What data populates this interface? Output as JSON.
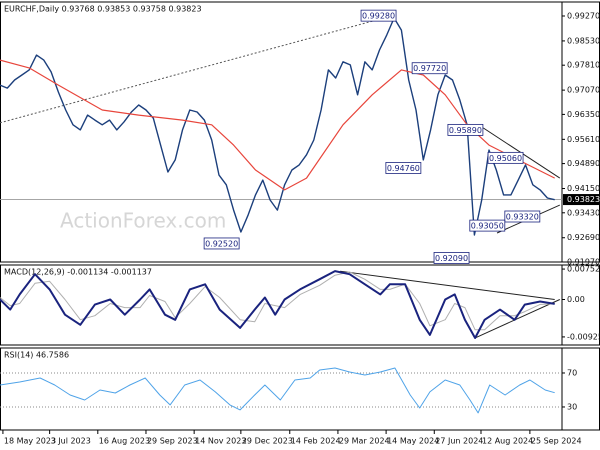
{
  "chart_data": [
    {
      "type": "line",
      "title": "EURCHF,Daily 0.93768 0.93853 0.93758 0.93823",
      "watermark": "ActionForex.com",
      "xlim": [
        0,
        77
      ],
      "ylim": [
        0.9197,
        0.99685
      ],
      "yticks": [
        {
          "value": 0.9927,
          "label": "0.99270"
        },
        {
          "value": 0.9853,
          "label": "0.98530"
        },
        {
          "value": 0.9781,
          "label": "0.97810"
        },
        {
          "value": 0.9707,
          "label": "0.97070"
        },
        {
          "value": 0.9635,
          "label": "0.96350"
        },
        {
          "value": 0.9561,
          "label": "0.95610"
        },
        {
          "value": 0.9489,
          "label": "0.94890"
        },
        {
          "value": 0.9415,
          "label": "0.94150"
        },
        {
          "value": 0.9343,
          "label": "0.93430"
        },
        {
          "value": 0.9269,
          "label": "0.92690"
        },
        {
          "value": 0.9197,
          "label": "0.91970"
        }
      ],
      "x": [
        0,
        1,
        2,
        3,
        4,
        5,
        6,
        7,
        8,
        9,
        10,
        11,
        12,
        13,
        14,
        15,
        16,
        17,
        18,
        19,
        20,
        21,
        22,
        23,
        24,
        25,
        26,
        27,
        28,
        29,
        30,
        31,
        32,
        33,
        34,
        35,
        36,
        37,
        38,
        39,
        40,
        41,
        42,
        43,
        44,
        45,
        46,
        47,
        48,
        49,
        50,
        51,
        52,
        53,
        54,
        55,
        56,
        57,
        58,
        59,
        60,
        61,
        62,
        63,
        64,
        65,
        66,
        67,
        68,
        69,
        70,
        71,
        72,
        73,
        74,
        75,
        76
      ],
      "series": [
        {
          "color": "#1c3f7c",
          "width": 1.4,
          "values": [
            0.9722,
            0.9713,
            0.9737,
            0.9752,
            0.9767,
            0.9811,
            0.9796,
            0.9761,
            0.9701,
            0.9648,
            0.9604,
            0.9589,
            0.9633,
            0.9618,
            0.9604,
            0.9618,
            0.9589,
            0.9613,
            0.9642,
            0.9663,
            0.9648,
            0.9624,
            0.9544,
            0.9464,
            0.95,
            0.9589,
            0.9648,
            0.9642,
            0.9618,
            0.9559,
            0.9455,
            0.9426,
            0.9351,
            0.9286,
            0.9337,
            0.9396,
            0.944,
            0.9381,
            0.9351,
            0.9426,
            0.947,
            0.9485,
            0.9515,
            0.9559,
            0.9648,
            0.9767,
            0.9743,
            0.9791,
            0.9782,
            0.9693,
            0.9791,
            0.9767,
            0.9826,
            0.9871,
            0.9921,
            0.9885,
            0.9737,
            0.9648,
            0.95,
            0.9589,
            0.9693,
            0.9752,
            0.9737,
            0.9678,
            0.9604,
            0.9277,
            0.9381,
            0.9529,
            0.947,
            0.9396,
            0.9396,
            0.944,
            0.9485,
            0.9426,
            0.9411,
            0.9387,
            0.9382
          ]
        },
        {
          "color": "#e8463c",
          "width": 1.2,
          "x": [
            0,
            4,
            8,
            14,
            19,
            25,
            29,
            32,
            35,
            39,
            42,
            47,
            51,
            55,
            58,
            61,
            64,
            67,
            71,
            76
          ],
          "values": [
            0.9796,
            0.9773,
            0.9722,
            0.9648,
            0.9633,
            0.9618,
            0.9604,
            0.9544,
            0.947,
            0.9411,
            0.9446,
            0.9604,
            0.9693,
            0.9767,
            0.9752,
            0.9693,
            0.9604,
            0.9544,
            0.95,
            0.9446
          ]
        }
      ],
      "trendlines": [
        {
          "style": "dotted",
          "color": "#555555",
          "points": [
            [
              0,
              0.961
            ],
            [
              54.1,
              0.993
            ]
          ]
        },
        {
          "style": "solid",
          "color": "#222222",
          "points": [
            [
              66.2,
              0.9595
            ],
            [
              76.7,
              0.9446
            ]
          ]
        },
        {
          "style": "solid",
          "color": "#222222",
          "points": [
            [
              68.1,
              0.9283
            ],
            [
              76.7,
              0.9366
            ]
          ]
        }
      ],
      "annotations": [
        {
          "x": 54.4,
          "value": 0.9928,
          "label": "0.99280"
        },
        {
          "x": 61.4,
          "value": 0.9772,
          "label": "0.97720"
        },
        {
          "x": 66.3,
          "value": 0.9589,
          "label": "0.95890"
        },
        {
          "x": 71.8,
          "value": 0.9506,
          "label": "0.95060"
        },
        {
          "x": 57.8,
          "value": 0.9476,
          "label": "0.94760"
        },
        {
          "x": 32.9,
          "value": 0.9252,
          "label": "0.92520"
        },
        {
          "x": 74.1,
          "value": 0.9332,
          "label": "0.93320"
        },
        {
          "x": 69.3,
          "value": 0.9305,
          "label": "0.93050"
        },
        {
          "x": 64.4,
          "value": 0.9209,
          "label": "0.92090"
        }
      ],
      "last": {
        "value": 0.93823,
        "label": "0.93823"
      }
    },
    {
      "type": "line",
      "title": "MACD(12,26,9) -0.001134 -0.001137",
      "xlim": [
        0,
        77
      ],
      "ylim": [
        -0.01125,
        0.00853
      ],
      "yticks": [
        0.007526,
        {
          "value": 0,
          "label": "0.00"
        },
        -0.009252
      ],
      "x": [
        0,
        1.4,
        2.7,
        4.8,
        6.8,
        8.9,
        11.0,
        13.0,
        15.1,
        17.1,
        19.2,
        20.5,
        22.6,
        24.0,
        26.0,
        28.1,
        30.1,
        32.9,
        34.9,
        36.3,
        37.7,
        39.0,
        41.1,
        43.8,
        45.9,
        47.9,
        50.0,
        52.1,
        53.4,
        55.5,
        57.5,
        58.9,
        61.0,
        62.3,
        63.7,
        65.1,
        66.4,
        68.5,
        70.5,
        71.9,
        74.0,
        76.0
      ],
      "series": [
        {
          "color": "#b0b0b0",
          "width": 1,
          "values": [
            0.0005,
            -0.0015,
            -0.001,
            0.004,
            0.0045,
            0,
            -0.005,
            -0.004,
            -0.001,
            -0.002,
            -0.002,
            0.001,
            -0.0005,
            -0.0045,
            -0.001,
            0.0032,
            0.0005,
            -0.005,
            -0.0055,
            -0.001,
            -0.0015,
            -0.002,
            0.0012,
            0.0035,
            0.006,
            0.0068,
            0.005,
            0.0025,
            0.0025,
            0.0038,
            -0.001,
            -0.0065,
            -0.005,
            -0.001,
            -0.002,
            -0.0075,
            -0.0075,
            -0.004,
            -0.004,
            -0.003,
            -0.0012,
            -0.0011
          ]
        },
        {
          "color": "#1a237e",
          "width": 2,
          "values": [
            0,
            -0.0025,
            0.00125,
            0.00626,
            0.0025,
            -0.00376,
            -0.00626,
            -0.00125,
            0,
            -0.00376,
            0,
            0.0025,
            -0.00376,
            -0.00501,
            0.0025,
            0.00376,
            -0.0025,
            -0.00701,
            -0.0025,
            0.0005,
            -0.00376,
            0,
            0.0025,
            0.00501,
            0.00701,
            0.00626,
            0.00376,
            0.00125,
            0.00376,
            0.00376,
            -0.00501,
            -0.00876,
            0,
            0.00125,
            -0.00501,
            -0.00952,
            -0.00501,
            -0.0025,
            -0.00501,
            -0.00125,
            -0.0005,
            -0.0011
          ]
        }
      ],
      "trendlines": [
        {
          "style": "solid",
          "color": "#222222",
          "points": [
            [
              46.6,
              0.007
            ],
            [
              76,
              0
            ]
          ]
        },
        {
          "style": "solid",
          "color": "#222222",
          "points": [
            [
              65.1,
              -0.0095
            ],
            [
              76.7,
              0
            ]
          ]
        }
      ]
    },
    {
      "type": "line",
      "title": "RSI(14) 46.7586",
      "xlim": [
        0,
        77
      ],
      "ylim": [
        2.9,
        99.4
      ],
      "yticks": [
        70,
        30
      ],
      "grid": true,
      "x": [
        0,
        2.7,
        5.5,
        7.5,
        9.6,
        11.6,
        13.7,
        15.8,
        17.8,
        19.9,
        21.9,
        23.3,
        25.3,
        27.4,
        29.5,
        31.5,
        32.9,
        34.9,
        36.3,
        38.4,
        40.4,
        42.5,
        43.8,
        45.9,
        47.9,
        50.0,
        52.1,
        54.1,
        56.2,
        57.5,
        58.9,
        61.0,
        63.0,
        64.4,
        65.5,
        67.1,
        69.2,
        71.2,
        72.6,
        74.7,
        76.0
      ],
      "series": [
        {
          "color": "#4fa3e8",
          "width": 1,
          "values": [
            55.9,
            59.4,
            64.1,
            55.9,
            44.1,
            38.2,
            50.0,
            46.5,
            55.9,
            64.1,
            44.1,
            32.4,
            55.9,
            61.8,
            47.7,
            32.4,
            26.5,
            44.1,
            55.9,
            38.2,
            61.8,
            64.1,
            73.5,
            75.9,
            71.2,
            67.6,
            71.2,
            75.9,
            44.1,
            28.8,
            47.7,
            61.8,
            55.9,
            38.2,
            23.0,
            55.9,
            44.1,
            55.9,
            61.8,
            50.0,
            46.8
          ]
        }
      ],
      "xticks": [
        {
          "value": 0.4,
          "label": "18 May 2023"
        },
        {
          "value": 6.8,
          "label": "3 Jul 2023"
        },
        {
          "value": 13.4,
          "label": "16 Aug 2023"
        },
        {
          "value": 20.0,
          "label": "29 Sep 2023"
        },
        {
          "value": 26.6,
          "label": "14 Nov 2023"
        },
        {
          "value": 33.0,
          "label": "29 Dec 2023"
        },
        {
          "value": 39.7,
          "label": "14 Feb 2024"
        },
        {
          "value": 46.3,
          "label": "29 Mar 2024"
        },
        {
          "value": 52.9,
          "label": "14 May 2024"
        },
        {
          "value": 59.5,
          "label": "27 Jun 2024"
        },
        {
          "value": 65.9,
          "label": "12 Aug 2024"
        },
        {
          "value": 72.6,
          "label": "25 Sep 2024"
        }
      ]
    }
  ]
}
